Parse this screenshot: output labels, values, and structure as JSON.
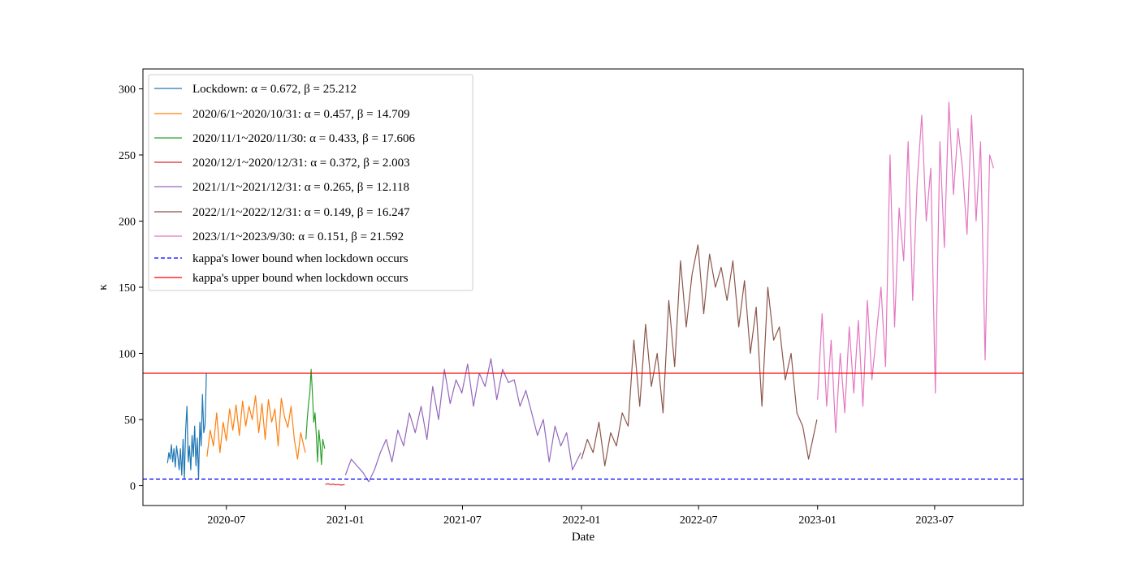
{
  "chart_data": {
    "type": "line",
    "title": "",
    "xlabel": "Date",
    "ylabel": "κ",
    "xlim": [
      "2020-02-23",
      "2023-11-15"
    ],
    "ylim": [
      -15,
      315
    ],
    "x_ticks": [
      "2020-07-01",
      "2021-01-01",
      "2021-07-01",
      "2022-01-01",
      "2022-07-01",
      "2023-01-01",
      "2023-07-01"
    ],
    "x_tick_labels": [
      "2020-07",
      "2021-01",
      "2021-07",
      "2022-01",
      "2022-07",
      "2023-01",
      "2023-07"
    ],
    "y_ticks": [
      0,
      50,
      100,
      150,
      200,
      250,
      300
    ],
    "y_tick_labels": [
      "0",
      "50",
      "100",
      "150",
      "200",
      "250",
      "300"
    ],
    "grid": false,
    "legend_position": "top-left",
    "series": [
      {
        "name": "Lockdown: α = 0.672, β = 25.212",
        "color": "#1f77b4",
        "x": [
          "2020-04-01",
          "2020-04-03",
          "2020-04-05",
          "2020-04-07",
          "2020-04-09",
          "2020-04-11",
          "2020-04-13",
          "2020-04-15",
          "2020-04-17",
          "2020-04-19",
          "2020-04-21",
          "2020-04-23",
          "2020-04-25",
          "2020-04-27",
          "2020-04-29",
          "2020-05-01",
          "2020-05-03",
          "2020-05-05",
          "2020-05-07",
          "2020-05-09",
          "2020-05-11",
          "2020-05-13",
          "2020-05-15",
          "2020-05-17",
          "2020-05-19",
          "2020-05-21",
          "2020-05-23",
          "2020-05-25",
          "2020-05-27",
          "2020-05-29",
          "2020-05-31"
        ],
        "y": [
          17,
          25,
          20,
          31,
          18,
          28,
          14,
          30,
          22,
          12,
          28,
          8,
          35,
          5,
          42,
          60,
          18,
          30,
          12,
          38,
          22,
          45,
          15,
          36,
          5,
          48,
          30,
          69,
          40,
          46,
          85
        ]
      },
      {
        "name": "2020/6/1~2020/10/31: α = 0.457, β = 14.709",
        "color": "#ff7f0e",
        "x": [
          "2020-06-01",
          "2020-06-06",
          "2020-06-11",
          "2020-06-16",
          "2020-06-21",
          "2020-06-26",
          "2020-07-01",
          "2020-07-06",
          "2020-07-11",
          "2020-07-16",
          "2020-07-21",
          "2020-07-26",
          "2020-07-31",
          "2020-08-05",
          "2020-08-10",
          "2020-08-15",
          "2020-08-20",
          "2020-08-25",
          "2020-08-30",
          "2020-09-04",
          "2020-09-09",
          "2020-09-14",
          "2020-09-19",
          "2020-09-24",
          "2020-09-29",
          "2020-10-04",
          "2020-10-09",
          "2020-10-14",
          "2020-10-19",
          "2020-10-24",
          "2020-10-31"
        ],
        "y": [
          22,
          42,
          30,
          55,
          25,
          48,
          34,
          58,
          42,
          61,
          38,
          64,
          45,
          60,
          50,
          68,
          40,
          62,
          35,
          65,
          48,
          58,
          30,
          66,
          52,
          44,
          60,
          35,
          20,
          40,
          25
        ]
      },
      {
        "name": "2020/11/1~2020/11/30: α = 0.433, β = 17.606",
        "color": "#2ca02c",
        "x": [
          "2020-11-01",
          "2020-11-03",
          "2020-11-05",
          "2020-11-07",
          "2020-11-09",
          "2020-11-11",
          "2020-11-13",
          "2020-11-15",
          "2020-11-17",
          "2020-11-19",
          "2020-11-21",
          "2020-11-23",
          "2020-11-25",
          "2020-11-27",
          "2020-11-30"
        ],
        "y": [
          35,
          50,
          62,
          70,
          88,
          70,
          48,
          55,
          38,
          18,
          42,
          32,
          16,
          35,
          28
        ]
      },
      {
        "name": "2020/12/1~2020/12/31: α = 0.372, β = 2.003",
        "color": "#d62728",
        "x": [
          "2020-12-01",
          "2020-12-05",
          "2020-12-09",
          "2020-12-13",
          "2020-12-17",
          "2020-12-21",
          "2020-12-25",
          "2020-12-31"
        ],
        "y": [
          1,
          1.5,
          0.8,
          1.2,
          0.6,
          1.0,
          0.4,
          0.8
        ]
      },
      {
        "name": "2021/1/1~2021/12/31: α = 0.265, β = 12.118",
        "color": "#9467bd",
        "x": [
          "2021-01-01",
          "2021-01-10",
          "2021-01-19",
          "2021-01-28",
          "2021-02-06",
          "2021-02-15",
          "2021-02-24",
          "2021-03-05",
          "2021-03-14",
          "2021-03-23",
          "2021-04-01",
          "2021-04-10",
          "2021-04-19",
          "2021-04-28",
          "2021-05-07",
          "2021-05-16",
          "2021-05-25",
          "2021-06-03",
          "2021-06-12",
          "2021-06-21",
          "2021-06-30",
          "2021-07-09",
          "2021-07-18",
          "2021-07-27",
          "2021-08-05",
          "2021-08-14",
          "2021-08-23",
          "2021-09-01",
          "2021-09-10",
          "2021-09-19",
          "2021-09-28",
          "2021-10-07",
          "2021-10-16",
          "2021-10-25",
          "2021-11-03",
          "2021-11-12",
          "2021-11-21",
          "2021-11-30",
          "2021-12-09",
          "2021-12-18",
          "2021-12-31"
        ],
        "y": [
          8,
          20,
          15,
          10,
          3,
          12,
          25,
          35,
          18,
          42,
          30,
          55,
          40,
          60,
          35,
          75,
          50,
          88,
          62,
          80,
          70,
          92,
          60,
          85,
          75,
          96,
          65,
          88,
          78,
          80,
          60,
          72,
          55,
          38,
          50,
          18,
          45,
          30,
          40,
          12,
          25
        ]
      },
      {
        "name": "2022/1/1~2022/12/31: α = 0.149, β = 16.247",
        "color": "#8c564b",
        "x": [
          "2022-01-01",
          "2022-01-10",
          "2022-01-19",
          "2022-01-28",
          "2022-02-06",
          "2022-02-15",
          "2022-02-24",
          "2022-03-05",
          "2022-03-14",
          "2022-03-23",
          "2022-04-01",
          "2022-04-10",
          "2022-04-19",
          "2022-04-28",
          "2022-05-07",
          "2022-05-16",
          "2022-05-25",
          "2022-06-03",
          "2022-06-12",
          "2022-06-21",
          "2022-06-30",
          "2022-07-09",
          "2022-07-18",
          "2022-07-27",
          "2022-08-05",
          "2022-08-14",
          "2022-08-23",
          "2022-09-01",
          "2022-09-10",
          "2022-09-19",
          "2022-09-28",
          "2022-10-07",
          "2022-10-16",
          "2022-10-25",
          "2022-11-03",
          "2022-11-12",
          "2022-11-21",
          "2022-11-30",
          "2022-12-09",
          "2022-12-18",
          "2022-12-31"
        ],
        "y": [
          20,
          35,
          25,
          48,
          15,
          40,
          30,
          55,
          45,
          110,
          60,
          122,
          75,
          100,
          55,
          140,
          90,
          170,
          120,
          160,
          182,
          130,
          175,
          150,
          165,
          140,
          170,
          120,
          155,
          100,
          135,
          60,
          150,
          110,
          120,
          80,
          100,
          55,
          45,
          20,
          50
        ]
      },
      {
        "name": "2023/1/1~2023/9/30: α = 0.151, β = 21.592",
        "color": "#e377c2",
        "x": [
          "2023-01-01",
          "2023-01-08",
          "2023-01-15",
          "2023-01-22",
          "2023-01-29",
          "2023-02-05",
          "2023-02-12",
          "2023-02-19",
          "2023-02-26",
          "2023-03-05",
          "2023-03-12",
          "2023-03-19",
          "2023-03-26",
          "2023-04-02",
          "2023-04-09",
          "2023-04-16",
          "2023-04-23",
          "2023-04-30",
          "2023-05-07",
          "2023-05-14",
          "2023-05-21",
          "2023-05-28",
          "2023-06-04",
          "2023-06-11",
          "2023-06-18",
          "2023-06-25",
          "2023-07-02",
          "2023-07-09",
          "2023-07-16",
          "2023-07-23",
          "2023-07-30",
          "2023-08-06",
          "2023-08-13",
          "2023-08-20",
          "2023-08-27",
          "2023-09-03",
          "2023-09-10",
          "2023-09-17",
          "2023-09-24",
          "2023-09-30"
        ],
        "y": [
          65,
          130,
          60,
          110,
          40,
          100,
          55,
          120,
          70,
          125,
          60,
          140,
          80,
          115,
          150,
          90,
          250,
          120,
          210,
          170,
          260,
          140,
          230,
          280,
          200,
          240,
          70,
          260,
          180,
          290,
          220,
          270,
          240,
          190,
          280,
          200,
          260,
          95,
          250,
          240
        ]
      },
      {
        "name": "kappa's lower bound when lockdown occurs",
        "color": "#0000ff",
        "style": "dashed",
        "x": [
          "2020-02-23",
          "2023-11-15"
        ],
        "y": [
          5,
          5
        ]
      },
      {
        "name": "kappa's upper bound when lockdown occurs",
        "color": "#ff0000",
        "style": "solid",
        "x": [
          "2020-02-23",
          "2023-11-15"
        ],
        "y": [
          85,
          85
        ]
      }
    ]
  }
}
